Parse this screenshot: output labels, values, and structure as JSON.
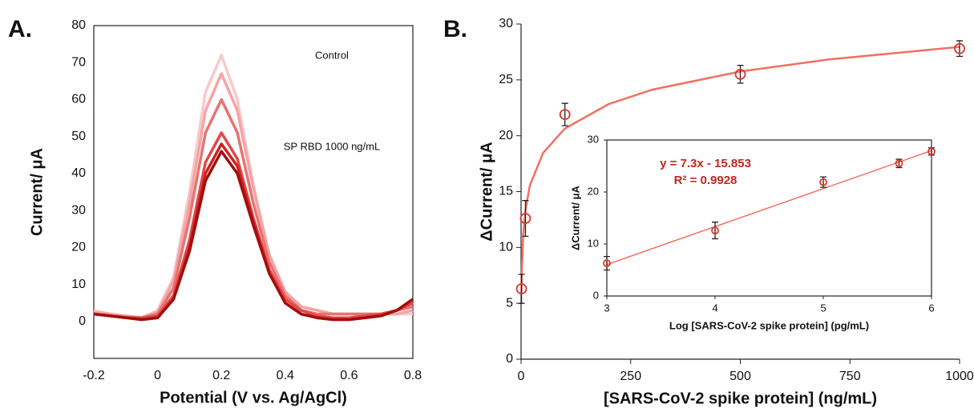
{
  "chart_data": [
    {
      "type": "line",
      "panel_label": "A.",
      "xlabel": "Potential (V vs. Ag/AgCl)",
      "ylabel": "Current/ μA",
      "annotations": [
        "Control",
        "SP RBD 1000 ng/mL"
      ],
      "x": [
        -0.2,
        -0.15,
        -0.1,
        -0.05,
        0,
        0.05,
        0.1,
        0.15,
        0.2,
        0.25,
        0.3,
        0.35,
        0.4,
        0.45,
        0.5,
        0.55,
        0.6,
        0.65,
        0.7,
        0.75,
        0.8
      ],
      "series": [
        {
          "color": "#f9c9c9",
          "values": [
            3,
            2,
            1.5,
            1,
            3,
            12,
            35,
            62,
            72,
            60,
            37,
            18,
            8,
            4,
            3,
            2,
            2,
            2,
            2,
            2,
            2
          ]
        },
        {
          "color": "#f4a4a4",
          "values": [
            2.5,
            2,
            1.5,
            1,
            2.5,
            11,
            32,
            57,
            67,
            57,
            36,
            18,
            8,
            4,
            3,
            2,
            2,
            2,
            2,
            2,
            3
          ]
        },
        {
          "color": "#e97272",
          "values": [
            2,
            1.5,
            1.2,
            1,
            2,
            9,
            28,
            51,
            60,
            51,
            32,
            16,
            7,
            3,
            2,
            2,
            2,
            2,
            2,
            3,
            4
          ]
        },
        {
          "color": "#e04848",
          "values": [
            2,
            1.5,
            1,
            1,
            1.5,
            7,
            22,
            43,
            51,
            44,
            28,
            14,
            6,
            3,
            1.5,
            1,
            1,
            1.5,
            2,
            3,
            5
          ]
        },
        {
          "color": "#cc2222",
          "values": [
            2,
            1.5,
            1,
            0.5,
            1,
            6,
            20,
            40,
            48,
            42,
            27,
            13,
            5,
            2,
            1,
            0.5,
            0.5,
            1,
            1.5,
            3,
            6
          ]
        },
        {
          "color": "#a40d0d",
          "values": [
            2,
            1.5,
            1,
            0.5,
            1,
            6,
            19,
            38,
            46,
            40,
            26,
            13,
            5,
            2,
            1,
            0.5,
            0.5,
            1,
            1.5,
            3,
            6
          ]
        }
      ],
      "xlim": [
        -0.2,
        0.8
      ],
      "xticks": [
        -0.2,
        0,
        0.2,
        0.4,
        0.6,
        0.8
      ],
      "ylim": [
        -10,
        80
      ],
      "yticks": [
        0,
        10,
        20,
        30,
        40,
        50,
        60,
        70,
        80
      ]
    },
    {
      "type": "scatter",
      "panel_label": "B.",
      "xlabel": "[SARS-CoV-2 spike protein] (ng/mL)",
      "ylabel": "ΔCurrent/ μA",
      "x": [
        1,
        10,
        100,
        500,
        1000
      ],
      "values": [
        6.3,
        12.6,
        21.9,
        25.5,
        27.8
      ],
      "errors": [
        1.3,
        1.6,
        1.0,
        0.8,
        0.7
      ],
      "color": "#d8392b",
      "fit": {
        "color": "#f07060",
        "x": [
          1,
          2,
          5,
          10,
          20,
          50,
          100,
          200,
          300,
          500,
          700,
          1000
        ],
        "values": [
          6.05,
          8.24,
          11.15,
          13.35,
          15.54,
          18.45,
          20.65,
          22.84,
          24.13,
          25.75,
          26.82,
          27.95
        ]
      },
      "xlim": [
        0,
        1000
      ],
      "xticks": [
        0,
        250,
        500,
        750,
        1000
      ],
      "ylim": [
        0,
        30
      ],
      "yticks": [
        0,
        5,
        10,
        15,
        20,
        25,
        30
      ]
    },
    {
      "type": "scatter",
      "xlabel": "Log [SARS-CoV-2 spike protein] (pg/mL)",
      "ylabel": "ΔCurrent/ μA",
      "equation": "y = 7.3x - 15.853",
      "r_squared": "R² = 0.9928",
      "x": [
        3,
        4,
        5,
        5.7,
        6
      ],
      "values": [
        6.3,
        12.6,
        21.9,
        25.5,
        27.8
      ],
      "errors": [
        1.3,
        1.6,
        1.0,
        0.8,
        0.7
      ],
      "color": "#d8392b",
      "fit": {
        "color": "#f07060",
        "x": [
          3,
          6
        ],
        "values": [
          6.05,
          27.95
        ]
      },
      "xlim": [
        3,
        6
      ],
      "xticks": [
        3,
        4,
        5,
        6
      ],
      "ylim": [
        0,
        30
      ],
      "yticks": [
        0,
        10,
        20,
        30
      ]
    }
  ]
}
